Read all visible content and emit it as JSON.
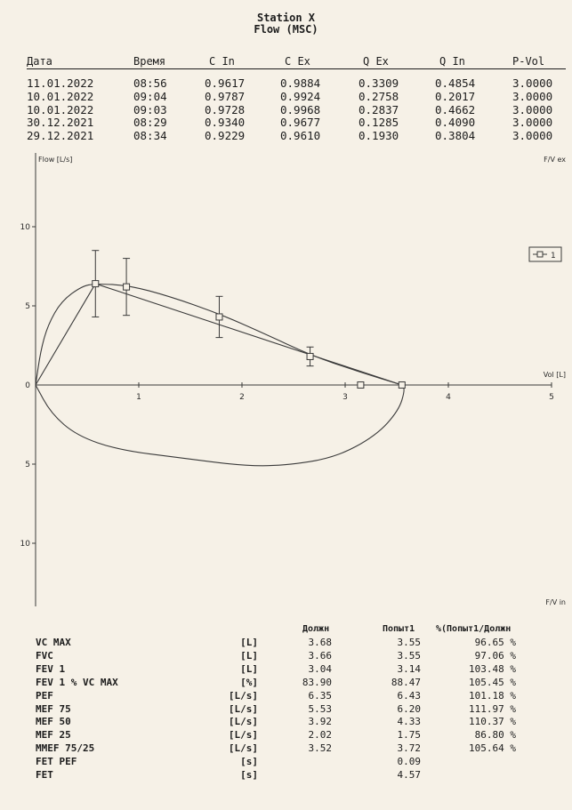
{
  "header": {
    "title": "Station X",
    "subtitle": "Flow (MSC)"
  },
  "sessions_table": {
    "columns": [
      "Дата",
      "Время",
      "C In",
      "C Ex",
      "Q Ex",
      "Q In",
      "P-Vol"
    ],
    "rows": [
      [
        "11.01.2022",
        "08:56",
        "0.9617",
        "0.9884",
        "0.3309",
        "0.4854",
        "3.0000"
      ],
      [
        "10.01.2022",
        "09:04",
        "0.9787",
        "0.9924",
        "0.2758",
        "0.2017",
        "3.0000"
      ],
      [
        "10.01.2022",
        "09:03",
        "0.9728",
        "0.9968",
        "0.2837",
        "0.4662",
        "3.0000"
      ],
      [
        "30.12.2021",
        "08:29",
        "0.9340",
        "0.9677",
        "0.1285",
        "0.4090",
        "3.0000"
      ],
      [
        "29.12.2021",
        "08:34",
        "0.9229",
        "0.9610",
        "0.1930",
        "0.3804",
        "3.0000"
      ]
    ]
  },
  "chart_data": {
    "type": "line",
    "title": "",
    "ylabel": "Flow [L/s]",
    "xlabel": "Vol [L]",
    "top_right_label": "F/V ex",
    "bottom_right_label": "F/V in",
    "xlim": [
      0,
      5
    ],
    "ylim": [
      -13,
      13
    ],
    "x_ticks": [
      "1",
      "2",
      "3",
      "4",
      "5"
    ],
    "y_ticks_up": [
      "5",
      "10"
    ],
    "y_ticks_down": [
      "5",
      "10"
    ],
    "y_tick_zero": "0",
    "legend": {
      "label": "1",
      "position": "top-right"
    },
    "series": [
      {
        "name": "1",
        "kind": "predicted-markers",
        "points": [
          {
            "x": 0.58,
            "y": 6.4,
            "err": 2.1
          },
          {
            "x": 0.88,
            "y": 6.2,
            "err": 1.8
          },
          {
            "x": 1.78,
            "y": 4.3,
            "err": 1.3
          },
          {
            "x": 2.66,
            "y": 1.8,
            "err": 0.6
          },
          {
            "x": 3.15,
            "y": 0.0,
            "err": 0
          },
          {
            "x": 3.55,
            "y": 0.0,
            "err": 0
          }
        ]
      },
      {
        "name": "expiratory",
        "kind": "curve",
        "points": [
          [
            0,
            0
          ],
          [
            0.05,
            2.2
          ],
          [
            0.12,
            3.8
          ],
          [
            0.25,
            5.3
          ],
          [
            0.45,
            6.25
          ],
          [
            0.58,
            6.4
          ],
          [
            0.9,
            6.3
          ],
          [
            1.3,
            5.6
          ],
          [
            1.78,
            4.5
          ],
          [
            2.2,
            3.3
          ],
          [
            2.66,
            1.9
          ],
          [
            3.1,
            0.9
          ],
          [
            3.55,
            0.0
          ]
        ]
      },
      {
        "name": "inspiratory",
        "kind": "curve",
        "points": [
          [
            0,
            0
          ],
          [
            0.15,
            -1.8
          ],
          [
            0.4,
            -3.2
          ],
          [
            0.8,
            -4.1
          ],
          [
            1.4,
            -4.6
          ],
          [
            2.0,
            -5.1
          ],
          [
            2.4,
            -5.1
          ],
          [
            2.9,
            -4.6
          ],
          [
            3.3,
            -3.2
          ],
          [
            3.52,
            -1.6
          ],
          [
            3.58,
            -0.3
          ],
          [
            3.55,
            0.0
          ]
        ]
      },
      {
        "name": "straight",
        "kind": "curve",
        "points": [
          [
            0,
            0
          ],
          [
            0.58,
            6.4
          ],
          [
            3.55,
            0.0
          ]
        ]
      }
    ]
  },
  "results": {
    "headers": [
      "Должн",
      "Попыт1",
      "%(Попыт1/Должн"
    ],
    "rows": [
      [
        "VC MAX",
        "[L]",
        "3.68",
        "3.55",
        "96.65 %"
      ],
      [
        "FVC",
        "[L]",
        "3.66",
        "3.55",
        "97.06 %"
      ],
      [
        "FEV 1",
        "[L]",
        "3.04",
        "3.14",
        "103.48 %"
      ],
      [
        "FEV 1 % VC MAX",
        "[%]",
        "83.90",
        "88.47",
        "105.45 %"
      ],
      [
        "PEF",
        "[L/s]",
        "6.35",
        "6.43",
        "101.18 %"
      ],
      [
        "MEF 75",
        "[L/s]",
        "5.53",
        "6.20",
        "111.97 %"
      ],
      [
        "MEF 50",
        "[L/s]",
        "3.92",
        "4.33",
        "110.37 %"
      ],
      [
        "MEF 25",
        "[L/s]",
        "2.02",
        "1.75",
        "86.80 %"
      ],
      [
        "MMEF 75/25",
        "[L/s]",
        "3.52",
        "3.72",
        "105.64 %"
      ],
      [
        "FET PEF",
        "[s]",
        "",
        "0.09",
        ""
      ],
      [
        "FET",
        "[s]",
        "",
        "4.57",
        ""
      ]
    ]
  }
}
